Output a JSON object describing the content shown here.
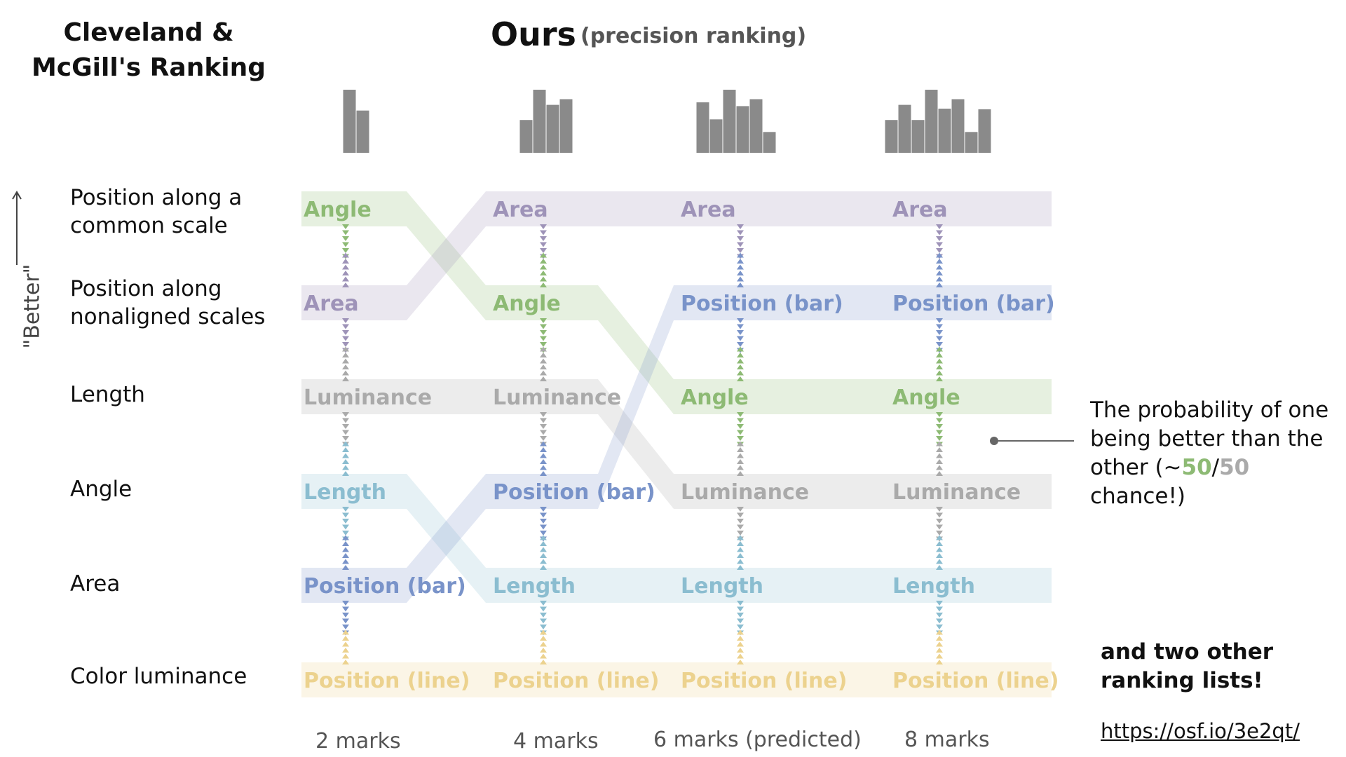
{
  "left_title": "Cleveland & McGill's Ranking",
  "ours_title": "Ours",
  "ours_subtitle": "(precision ranking)",
  "better_label": "\"Better\"",
  "cleveland_ranking": [
    "Position along a common scale",
    "Position along nonaligned scales",
    "Length",
    "Angle",
    "Area",
    "Color luminance"
  ],
  "columns": [
    {
      "marks_label": "2 marks",
      "bars": [
        1.0,
        0.67
      ],
      "ranking": [
        "Angle",
        "Area",
        "Luminance",
        "Length",
        "Position (bar)",
        "Position (line)"
      ]
    },
    {
      "marks_label": "4 marks",
      "bars": [
        0.52,
        1.0,
        0.76,
        0.85
      ],
      "ranking": [
        "Area",
        "Angle",
        "Luminance",
        "Position (bar)",
        "Length",
        "Position (line)"
      ]
    },
    {
      "marks_label": "6 marks (predicted)",
      "bars": [
        0.8,
        0.53,
        1.0,
        0.74,
        0.85,
        0.33
      ],
      "ranking": [
        "Area",
        "Position (bar)",
        "Angle",
        "Luminance",
        "Length",
        "Position (line)"
      ]
    },
    {
      "marks_label": "8 marks",
      "bars": [
        0.52,
        0.76,
        0.52,
        1.0,
        0.7,
        0.85,
        0.33,
        0.69
      ],
      "ranking": [
        "Area",
        "Position (bar)",
        "Angle",
        "Luminance",
        "Length",
        "Position (line)"
      ]
    }
  ],
  "encoding_colors": {
    "Angle": "#8dba74",
    "Area": "#9e93b8",
    "Luminance": "#aaaaaa",
    "Length": "#8bbdd0",
    "Position (bar)": "#7993c9",
    "Position (line)": "#ecd28e"
  },
  "note": {
    "line1": "The probability of one",
    "line2": "being better than the",
    "line3_prefix": "other (~",
    "num1": "50",
    "slash": "/",
    "num2": "50",
    "line3_suffix": " chance!)"
  },
  "other_lists": "and two other ranking lists!",
  "url": "https://osf.io/3e2qt/"
}
